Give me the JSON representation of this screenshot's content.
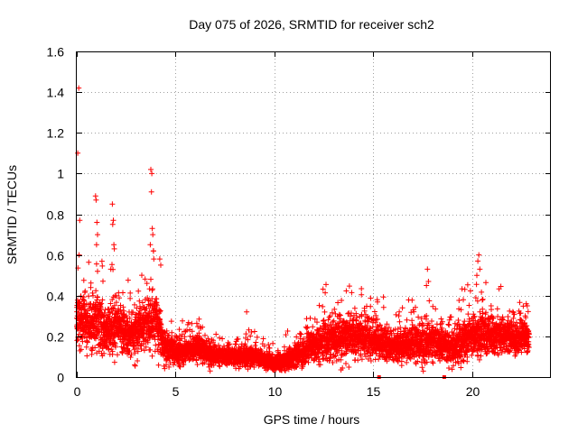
{
  "chart_data": {
    "type": "scatter",
    "title": "Day 075 of 2026, SRMTID for receiver sch2",
    "xlabel": "GPS time / hours",
    "ylabel": "SRMTID / TECUs",
    "xlim": [
      0,
      24
    ],
    "ylim": [
      0,
      1.6
    ],
    "xticks": [
      0,
      5,
      10,
      15,
      20
    ],
    "yticks": [
      0,
      0.2,
      0.4,
      0.6,
      0.8,
      1,
      1.2,
      1.4,
      1.6
    ],
    "xtick_labels": [
      "0",
      "5",
      "10",
      "15",
      "20"
    ],
    "ytick_labels": [
      "0",
      "0.2",
      "0.4",
      "0.6",
      "0.8",
      "1",
      "1.2",
      "1.4",
      "1.6"
    ],
    "grid": true,
    "legend": "none",
    "marker": "plus",
    "color": "#ff0000",
    "series": [
      {
        "name": "SRMTID",
        "profile": [
          {
            "t": 0.0,
            "base": 0.3,
            "spread": 0.12
          },
          {
            "t": 0.5,
            "base": 0.26,
            "spread": 0.1
          },
          {
            "t": 1.0,
            "base": 0.28,
            "spread": 0.12
          },
          {
            "t": 1.5,
            "base": 0.22,
            "spread": 0.1
          },
          {
            "t": 2.0,
            "base": 0.26,
            "spread": 0.11
          },
          {
            "t": 2.5,
            "base": 0.2,
            "spread": 0.08
          },
          {
            "t": 3.0,
            "base": 0.22,
            "spread": 0.09
          },
          {
            "t": 3.5,
            "base": 0.27,
            "spread": 0.1
          },
          {
            "t": 4.0,
            "base": 0.28,
            "spread": 0.11
          },
          {
            "t": 4.5,
            "base": 0.15,
            "spread": 0.06
          },
          {
            "t": 5.0,
            "base": 0.12,
            "spread": 0.05
          },
          {
            "t": 6.0,
            "base": 0.14,
            "spread": 0.05
          },
          {
            "t": 7.0,
            "base": 0.11,
            "spread": 0.04
          },
          {
            "t": 8.0,
            "base": 0.1,
            "spread": 0.04
          },
          {
            "t": 9.0,
            "base": 0.1,
            "spread": 0.04
          },
          {
            "t": 10.0,
            "base": 0.07,
            "spread": 0.03
          },
          {
            "t": 11.0,
            "base": 0.1,
            "spread": 0.05
          },
          {
            "t": 12.0,
            "base": 0.16,
            "spread": 0.07
          },
          {
            "t": 13.0,
            "base": 0.19,
            "spread": 0.08
          },
          {
            "t": 14.0,
            "base": 0.2,
            "spread": 0.09
          },
          {
            "t": 15.0,
            "base": 0.19,
            "spread": 0.08
          },
          {
            "t": 16.0,
            "base": 0.15,
            "spread": 0.06
          },
          {
            "t": 17.0,
            "base": 0.16,
            "spread": 0.07
          },
          {
            "t": 18.0,
            "base": 0.18,
            "spread": 0.08
          },
          {
            "t": 19.0,
            "base": 0.14,
            "spread": 0.07
          },
          {
            "t": 20.0,
            "base": 0.2,
            "spread": 0.09
          },
          {
            "t": 21.0,
            "base": 0.22,
            "spread": 0.08
          },
          {
            "t": 22.0,
            "base": 0.2,
            "spread": 0.07
          },
          {
            "t": 22.9,
            "base": 0.2,
            "spread": 0.07
          }
        ],
        "samples_per_hour": 120,
        "t_start": 0.0,
        "t_end": 22.9,
        "outliers": [
          {
            "x": 0.1,
            "y": 1.42
          },
          {
            "x": 0.05,
            "y": 1.1
          },
          {
            "x": 0.15,
            "y": 0.77
          },
          {
            "x": 0.12,
            "y": 0.6
          },
          {
            "x": 0.95,
            "y": 0.89
          },
          {
            "x": 0.98,
            "y": 0.87
          },
          {
            "x": 1.02,
            "y": 0.76
          },
          {
            "x": 1.05,
            "y": 0.7
          },
          {
            "x": 1.0,
            "y": 0.65
          },
          {
            "x": 1.8,
            "y": 0.85
          },
          {
            "x": 1.85,
            "y": 0.77
          },
          {
            "x": 1.82,
            "y": 0.75
          },
          {
            "x": 1.88,
            "y": 0.65
          },
          {
            "x": 1.9,
            "y": 0.63
          },
          {
            "x": 3.75,
            "y": 1.02
          },
          {
            "x": 3.8,
            "y": 1.0
          },
          {
            "x": 3.78,
            "y": 0.91
          },
          {
            "x": 3.82,
            "y": 0.73
          },
          {
            "x": 3.85,
            "y": 0.7
          },
          {
            "x": 3.72,
            "y": 0.65
          },
          {
            "x": 3.88,
            "y": 0.62
          },
          {
            "x": 3.9,
            "y": 0.58
          },
          {
            "x": 4.2,
            "y": 0.58
          },
          {
            "x": 4.25,
            "y": 0.55
          },
          {
            "x": 8.6,
            "y": 0.32
          },
          {
            "x": 17.75,
            "y": 0.53
          },
          {
            "x": 17.8,
            "y": 0.47
          },
          {
            "x": 17.7,
            "y": 0.45
          },
          {
            "x": 20.35,
            "y": 0.6
          },
          {
            "x": 20.3,
            "y": 0.57
          },
          {
            "x": 20.4,
            "y": 0.53
          },
          {
            "x": 20.25,
            "y": 0.5
          },
          {
            "x": 22.75,
            "y": 0.36
          },
          {
            "x": 22.8,
            "y": 0.35
          },
          {
            "x": 22.7,
            "y": 0.3
          }
        ]
      }
    ],
    "zero_markers": [
      {
        "x": 15.3,
        "y": 0
      },
      {
        "x": 18.6,
        "y": 0
      }
    ]
  }
}
